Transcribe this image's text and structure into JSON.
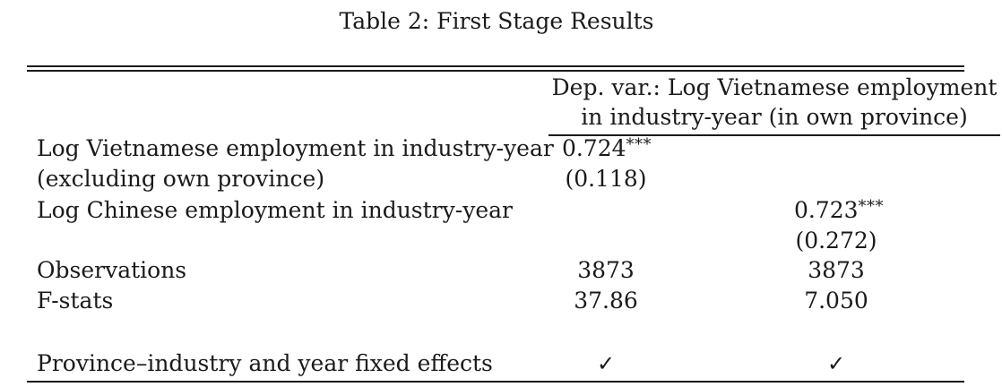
{
  "caption": "Table 2: First Stage Results",
  "header": {
    "line1": "Dep. var.: Log Vietnamese employment",
    "line2": "in industry-year (in own province)"
  },
  "rows": {
    "viet_label_1": "Log Vietnamese employment in industry-year",
    "viet_label_2": "(excluding own province)",
    "viet_coef": "0.724",
    "viet_stars": "***",
    "viet_se": "(0.118)",
    "chinese_label": "Log Chinese employment in industry-year",
    "chinese_coef": "0.723",
    "chinese_stars": "***",
    "chinese_se": "(0.272)",
    "obs_label": "Observations",
    "obs_col1": "3873",
    "obs_col2": "3873",
    "fstat_label": "F-stats",
    "fstat_col1": "37.86",
    "fstat_col2": "7.050",
    "fe_label": "Province–industry and year fixed effects",
    "fe_col1": "✓",
    "fe_col2": "✓"
  }
}
